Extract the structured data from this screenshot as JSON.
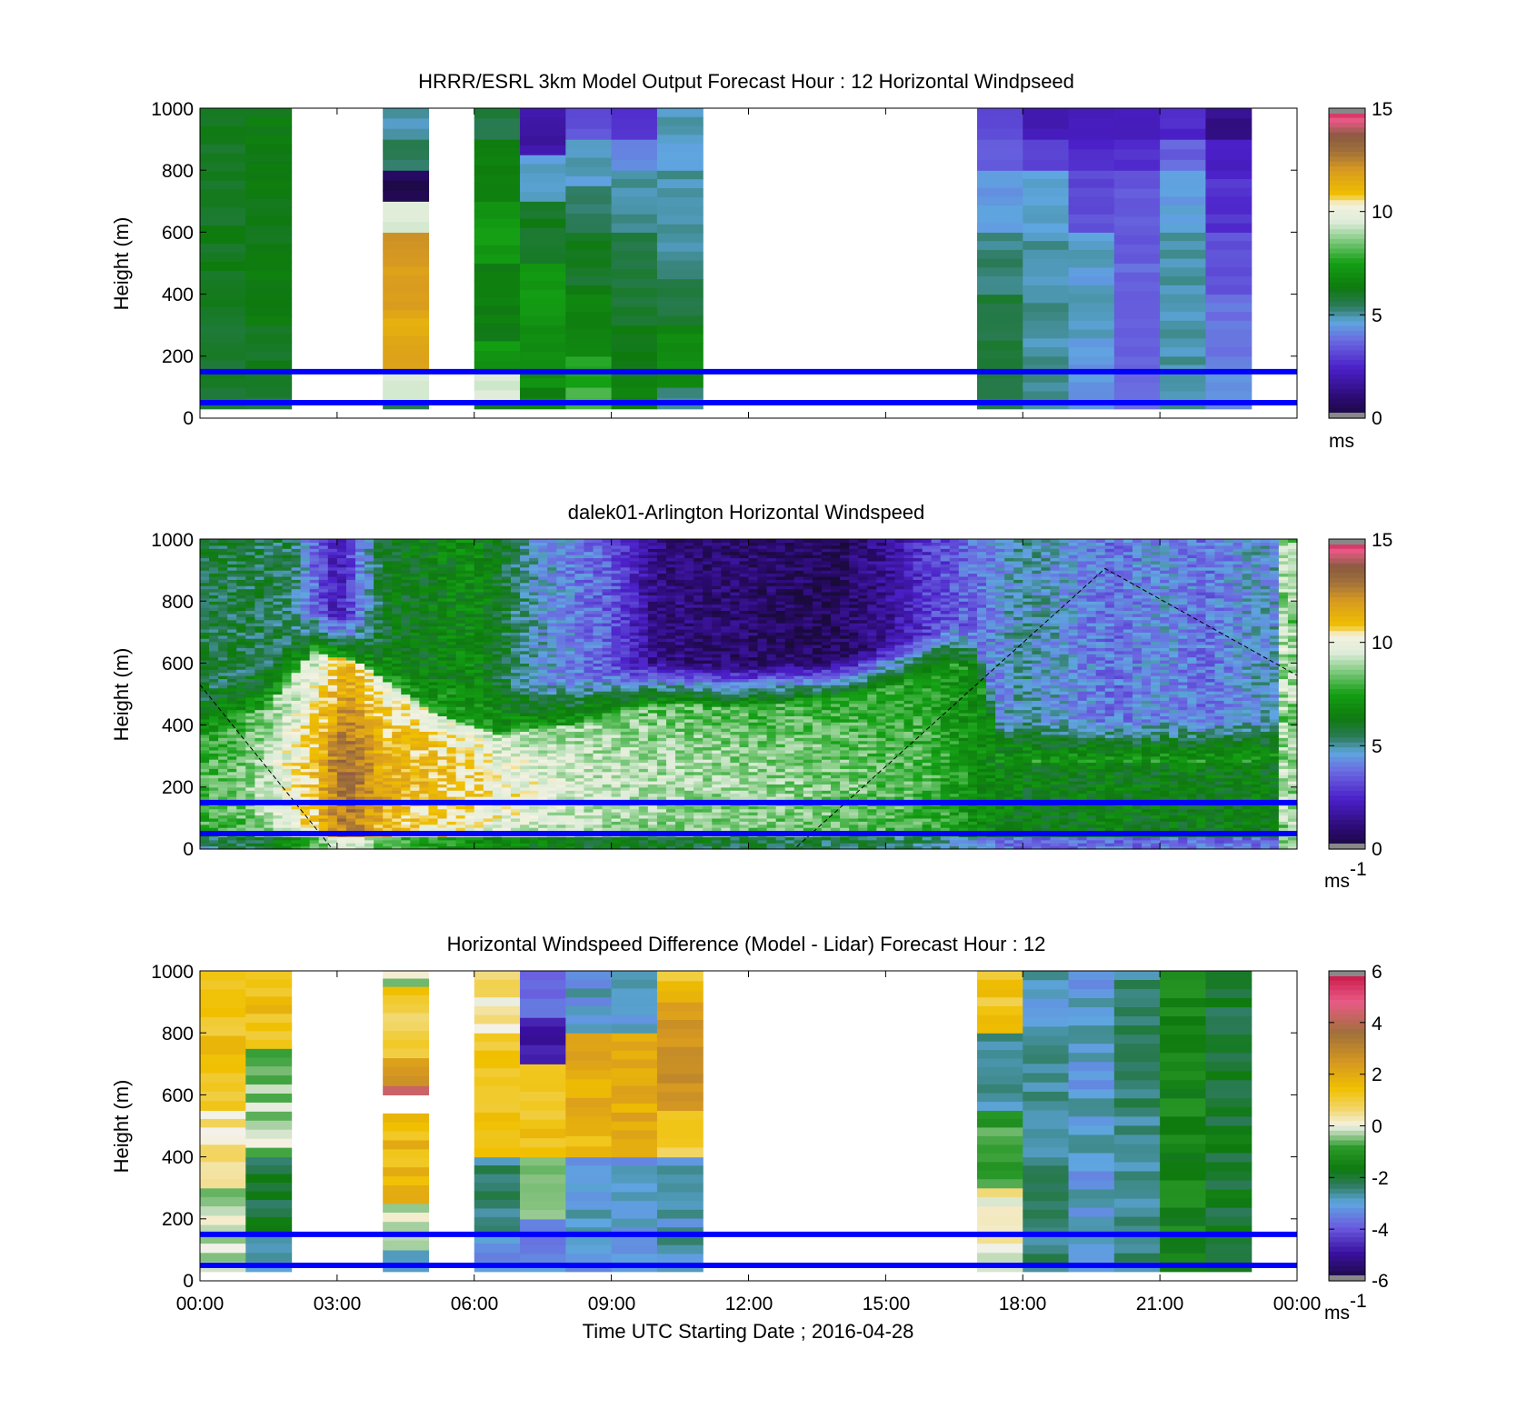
{
  "figure": {
    "xlabel": "Time UTC  Starting Date ; 2016-04-28",
    "x_ticks": [
      "00:00",
      "03:00",
      "06:00",
      "09:00",
      "12:00",
      "15:00",
      "18:00",
      "21:00",
      "00:00"
    ]
  },
  "chart_data": [
    {
      "type": "heatmap",
      "title": "HRRR/ESRL 3km Model Output   Forecast Hour : 12 Horizontal Windpseed",
      "ylabel": "Height (m)",
      "y_ticks": [
        "1000",
        "800",
        "600",
        "400",
        "200",
        "0"
      ],
      "xlim_hours": [
        0,
        24
      ],
      "ylim": [
        0,
        1000
      ],
      "colorbar": {
        "ticks": [
          "15",
          "10",
          "5",
          "0"
        ],
        "min": 0,
        "max": 15,
        "unit": "ms"
      },
      "colormap": "windspeed",
      "reference_heights": [
        150,
        50
      ],
      "reference_line_color": "#0000ff",
      "column_width_hours": 1,
      "columns": [
        {
          "t": 0,
          "cells": [
            [
              30,
              100,
              5.8
            ],
            [
              100,
              300,
              6.0
            ],
            [
              300,
              1000,
              6.1
            ]
          ]
        },
        {
          "t": 1,
          "cells": [
            [
              30,
              100,
              5.7
            ],
            [
              100,
              300,
              6.1
            ],
            [
              300,
              1000,
              6.3
            ]
          ]
        },
        {
          "t": 4,
          "cells": [
            [
              30,
              60,
              5.5
            ],
            [
              60,
              150,
              9.5
            ],
            [
              150,
              350,
              11.5
            ],
            [
              350,
              600,
              12.0
            ],
            [
              600,
              700,
              9.5
            ],
            [
              700,
              800,
              0.5
            ],
            [
              800,
              900,
              5.5
            ],
            [
              900,
              1000,
              4.8
            ]
          ]
        },
        {
          "t": 6,
          "cells": [
            [
              30,
              60,
              6.0
            ],
            [
              60,
              150,
              9.5
            ],
            [
              150,
              250,
              7.2
            ],
            [
              250,
              500,
              6.4
            ],
            [
              500,
              700,
              7.3
            ],
            [
              700,
              900,
              6.6
            ],
            [
              900,
              1000,
              5.7
            ]
          ]
        },
        {
          "t": 7,
          "cells": [
            [
              30,
              100,
              6.6
            ],
            [
              100,
              300,
              7.0
            ],
            [
              300,
              500,
              7.2
            ],
            [
              500,
              700,
              6.1
            ],
            [
              700,
              850,
              4.8
            ],
            [
              850,
              1000,
              1.8
            ]
          ]
        },
        {
          "t": 8,
          "cells": [
            [
              30,
              100,
              8.0
            ],
            [
              100,
              200,
              7.5
            ],
            [
              200,
              400,
              6.5
            ],
            [
              400,
              600,
              6.0
            ],
            [
              600,
              750,
              5.3
            ],
            [
              750,
              900,
              4.8
            ],
            [
              900,
              1000,
              3.2
            ]
          ]
        },
        {
          "t": 9,
          "cells": [
            [
              30,
              100,
              6.6
            ],
            [
              100,
              300,
              6.3
            ],
            [
              300,
              600,
              5.8
            ],
            [
              600,
              800,
              5.0
            ],
            [
              800,
              900,
              4.3
            ],
            [
              900,
              1000,
              2.8
            ]
          ]
        },
        {
          "t": 10,
          "cells": [
            [
              30,
              100,
              5.3
            ],
            [
              100,
              300,
              6.8
            ],
            [
              300,
              450,
              5.8
            ],
            [
              450,
              800,
              5.0
            ],
            [
              800,
              1000,
              4.8
            ]
          ]
        },
        {
          "t": 17,
          "cells": [
            [
              30,
              100,
              5.5
            ],
            [
              100,
              400,
              5.7
            ],
            [
              400,
              600,
              5.2
            ],
            [
              600,
              800,
              4.5
            ],
            [
              800,
              900,
              3.5
            ],
            [
              900,
              1000,
              3.3
            ]
          ]
        },
        {
          "t": 18,
          "cells": [
            [
              30,
              200,
              5.0
            ],
            [
              200,
              600,
              5.0
            ],
            [
              600,
              800,
              4.8
            ],
            [
              800,
              900,
              3.0
            ],
            [
              900,
              1000,
              2.2
            ]
          ]
        },
        {
          "t": 19,
          "cells": [
            [
              30,
              200,
              4.5
            ],
            [
              200,
              600,
              4.7
            ],
            [
              600,
              800,
              3.2
            ],
            [
              800,
              900,
              2.6
            ],
            [
              900,
              1000,
              2.4
            ]
          ]
        },
        {
          "t": 20,
          "cells": [
            [
              30,
              200,
              3.8
            ],
            [
              200,
              500,
              3.7
            ],
            [
              500,
              800,
              3.4
            ],
            [
              800,
              900,
              2.7
            ],
            [
              900,
              1000,
              2.2
            ]
          ]
        },
        {
          "t": 21,
          "cells": [
            [
              30,
              200,
              5.0
            ],
            [
              200,
              600,
              5.0
            ],
            [
              600,
              800,
              4.6
            ],
            [
              800,
              900,
              3.6
            ],
            [
              900,
              1000,
              2.5
            ]
          ]
        },
        {
          "t": 22,
          "cells": [
            [
              30,
              200,
              4.2
            ],
            [
              200,
              400,
              3.9
            ],
            [
              400,
              600,
              3.4
            ],
            [
              600,
              800,
              2.7
            ],
            [
              800,
              900,
              2.3
            ],
            [
              900,
              1000,
              1.4
            ]
          ]
        }
      ]
    },
    {
      "type": "heatmap",
      "title": "dalek01-Arlington  Horizontal Windspeed",
      "ylabel": "Height (m)",
      "y_ticks": [
        "1000",
        "800",
        "600",
        "400",
        "200",
        "0"
      ],
      "xlim_hours": [
        0,
        24
      ],
      "ylim": [
        0,
        1000
      ],
      "colorbar": {
        "ticks": [
          "15",
          "10",
          "5",
          "0"
        ],
        "min": 0,
        "max": 15,
        "unit": "ms",
        "unit_exponent": "-1"
      },
      "colormap": "windspeed",
      "reference_heights": [
        150,
        50
      ],
      "reference_line_color": "#0000ff",
      "jet_top_height_profile": [
        [
          0,
          350
        ],
        [
          1.5,
          470
        ],
        [
          2.5,
          640
        ],
        [
          3.5,
          600
        ],
        [
          5,
          450
        ],
        [
          6.5,
          370
        ],
        [
          8,
          400
        ],
        [
          10,
          470
        ],
        [
          12,
          460
        ],
        [
          14,
          480
        ],
        [
          15.5,
          540
        ],
        [
          16.5,
          590
        ],
        [
          17,
          560
        ],
        [
          17.5,
          280
        ],
        [
          24,
          280
        ]
      ],
      "upper_layer_speeds_by_hour": [
        [
          0,
          5.8
        ],
        [
          2,
          5.5
        ],
        [
          3,
          2.0
        ],
        [
          4,
          6.0
        ],
        [
          6,
          6.8
        ],
        [
          7.5,
          4.6
        ],
        [
          9,
          3.5
        ],
        [
          10,
          1.2
        ],
        [
          12,
          0.8
        ],
        [
          14,
          0.6
        ],
        [
          15,
          1.5
        ],
        [
          16,
          3.0
        ],
        [
          17,
          3.8
        ],
        [
          18,
          5.0
        ],
        [
          20,
          3.8
        ],
        [
          21,
          4.4
        ],
        [
          22,
          3.8
        ],
        [
          23,
          4.6
        ],
        [
          24,
          4.6
        ]
      ],
      "jet_core_speeds_by_hour": [
        [
          0,
          8.0
        ],
        [
          1,
          8.5
        ],
        [
          2.5,
          11.0
        ],
        [
          3.2,
          13.2
        ],
        [
          4,
          11.5
        ],
        [
          6,
          10.5
        ],
        [
          8,
          9.5
        ],
        [
          10,
          9.0
        ],
        [
          14,
          8.5
        ],
        [
          16,
          8.0
        ],
        [
          17,
          7.0
        ],
        [
          18,
          6.4
        ],
        [
          24,
          6.4
        ]
      ],
      "last_hour_speed": 9.0,
      "dashed_curve": [
        [
          0,
          530
        ],
        [
          2.9,
          0
        ],
        [
          13,
          0
        ],
        [
          19.8,
          905
        ],
        [
          24,
          560
        ]
      ]
    },
    {
      "type": "heatmap",
      "title": "Horizontal Windspeed Difference (Model - Lidar) Forecast Hour : 12",
      "ylabel": "Height (m)",
      "y_ticks": [
        "1000",
        "800",
        "600",
        "400",
        "200",
        "0"
      ],
      "xlim_hours": [
        0,
        24
      ],
      "ylim": [
        0,
        1000
      ],
      "colorbar": {
        "ticks": [
          "6",
          "4",
          "2",
          "0",
          "-2",
          "-4",
          "-6"
        ],
        "min": -6,
        "max": 6,
        "unit": "ms",
        "unit_exponent": "-1"
      },
      "colormap": "difference",
      "reference_heights": [
        150,
        50
      ],
      "reference_line_color": "#0000ff",
      "column_width_hours": 1,
      "columns": [
        {
          "t": 0,
          "cells": [
            [
              30,
              300,
              -0.3
            ],
            [
              300,
              550,
              0.4
            ],
            [
              550,
              1000,
              1.4
            ]
          ]
        },
        {
          "t": 1,
          "cells": [
            [
              30,
              150,
              -3.0
            ],
            [
              150,
              400,
              -2.0
            ],
            [
              400,
              750,
              -0.4
            ],
            [
              750,
              1000,
              1.4
            ]
          ]
        },
        {
          "t": 4,
          "cells": [
            [
              30,
              100,
              -2.5
            ],
            [
              100,
              250,
              -0.3
            ],
            [
              250,
              540,
              1.6
            ],
            [
              600,
              630,
              4.5
            ],
            [
              630,
              720,
              2.6
            ],
            [
              720,
              950,
              1.0
            ],
            [
              950,
              1000,
              -0.3
            ]
          ]
        },
        {
          "t": 6,
          "cells": [
            [
              30,
              150,
              -3.2
            ],
            [
              150,
              400,
              -2.5
            ],
            [
              400,
              800,
              1.2
            ],
            [
              800,
              1000,
              0.4
            ]
          ]
        },
        {
          "t": 7,
          "cells": [
            [
              30,
              200,
              -3.4
            ],
            [
              200,
              400,
              -0.5
            ],
            [
              400,
              700,
              1.4
            ],
            [
              700,
              850,
              -4.6
            ],
            [
              850,
              1000,
              -3.6
            ]
          ]
        },
        {
          "t": 8,
          "cells": [
            [
              30,
              400,
              -3.0
            ],
            [
              400,
              500,
              1.6
            ],
            [
              500,
              800,
              2.0
            ],
            [
              800,
              1000,
              -3.0
            ]
          ]
        },
        {
          "t": 9,
          "cells": [
            [
              30,
              400,
              -3.0
            ],
            [
              400,
              800,
              2.0
            ],
            [
              800,
              1000,
              -3.0
            ]
          ]
        },
        {
          "t": 10,
          "cells": [
            [
              30,
              400,
              -2.8
            ],
            [
              400,
              550,
              1.0
            ],
            [
              550,
              900,
              2.5
            ],
            [
              900,
              1000,
              1.4
            ]
          ]
        },
        {
          "t": 17,
          "cells": [
            [
              30,
              300,
              0.2
            ],
            [
              300,
              550,
              -1.0
            ],
            [
              550,
              800,
              -2.8
            ],
            [
              800,
              1000,
              1.2
            ]
          ]
        },
        {
          "t": 18,
          "cells": [
            [
              30,
              400,
              -2.5
            ],
            [
              400,
              1000,
              -2.8
            ]
          ]
        },
        {
          "t": 19,
          "cells": [
            [
              30,
              1000,
              -3.0
            ]
          ]
        },
        {
          "t": 20,
          "cells": [
            [
              30,
              1000,
              -2.5
            ]
          ]
        },
        {
          "t": 21,
          "cells": [
            [
              30,
              1000,
              -1.4
            ]
          ]
        },
        {
          "t": 22,
          "cells": [
            [
              30,
              1000,
              -1.9
            ]
          ]
        }
      ]
    }
  ]
}
